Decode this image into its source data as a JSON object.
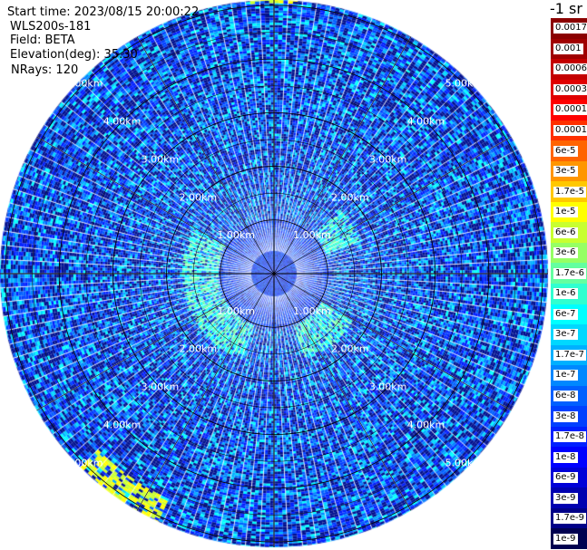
{
  "header": {
    "start_time": "Start time: 2023/08/15 20:00:22",
    "device": "WLS200s-181",
    "field": "Field: BETA",
    "elevation": "Elevation(deg): 35.30",
    "nrays": "NRays: 120"
  },
  "colorbar": {
    "unit_label": "-1 sr",
    "labels": [
      "0.0017",
      "0.001",
      "0.0006",
      "0.0003",
      "0.00017",
      "0.0001",
      "6e-5",
      "3e-5",
      "1.7e-5",
      "1e-5",
      "6e-6",
      "3e-6",
      "1.7e-6",
      "1e-6",
      "6e-7",
      "3e-7",
      "1.7e-7",
      "1e-7",
      "6e-8",
      "3e-8",
      "1.7e-8",
      "1e-8",
      "6e-9",
      "3e-9",
      "1.7e-9",
      "1e-9"
    ],
    "colors": [
      "#8b0000",
      "#a00000",
      "#c40000",
      "#e00000",
      "#ff0000",
      "#ff3000",
      "#ff6400",
      "#ff9600",
      "#ffc800",
      "#ffff00",
      "#c8ff30",
      "#96ff64",
      "#64ffa0",
      "#30ffd0",
      "#00ffff",
      "#00d8ff",
      "#00b0ff",
      "#0088ff",
      "#0060ff",
      "#0040ff",
      "#0020ff",
      "#0000ff",
      "#0000d8",
      "#0000b0",
      "#000088",
      "#000050"
    ]
  },
  "chart_data": {
    "type": "heatmap",
    "projection": "polar-ppi",
    "range_labels": [
      "1.00km",
      "2.00km",
      "3.00km",
      "4.00km",
      "5.00km"
    ],
    "range_rings_km": [
      1,
      2,
      3,
      4,
      5
    ],
    "max_range_km": 5.1,
    "nrays": 120,
    "grid": true,
    "colorscale": "jet-log",
    "features": [
      {
        "desc": "ring of elevated backscatter",
        "range_km_min": 1.0,
        "range_km_max": 1.7,
        "level": "1.7e-7 to 1e-6"
      },
      {
        "desc": "high backscatter arc",
        "azimuth_deg_min": 205,
        "azimuth_deg_max": 225,
        "range_km_min": 4.6,
        "range_km_max": 5.2,
        "level": "1e-5"
      },
      {
        "desc": "high backscatter arc",
        "azimuth_deg_min": 355,
        "azimuth_deg_max": 5,
        "range_km_min": 5.0,
        "range_km_max": 5.2,
        "level": "1e-5"
      }
    ]
  }
}
